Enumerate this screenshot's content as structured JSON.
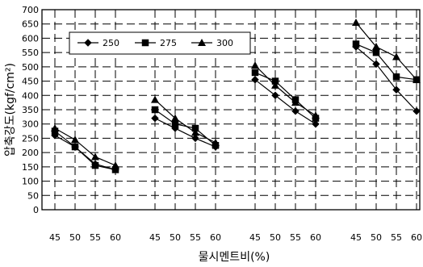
{
  "chart_data": {
    "type": "line",
    "title": "",
    "xlabel": "물시멘트비(%)",
    "ylabel": "압축강도(kgf/cm²)",
    "ylim": [
      0,
      700
    ],
    "ytick_step": 50,
    "grid": true,
    "legend_position": "top-left",
    "group_count": 4,
    "x": [
      "45",
      "50",
      "55",
      "60"
    ],
    "series": [
      {
        "name": "250",
        "marker": "diamond",
        "groups": [
          [
            260,
            220,
            160,
            140
          ],
          [
            320,
            285,
            250,
            220
          ],
          [
            455,
            400,
            345,
            300
          ],
          [
            570,
            510,
            420,
            345
          ]
        ]
      },
      {
        "name": "275",
        "marker": "square",
        "groups": [
          [
            275,
            220,
            155,
            140
          ],
          [
            350,
            300,
            285,
            225
          ],
          [
            480,
            450,
            385,
            320
          ],
          [
            580,
            550,
            465,
            455
          ]
        ]
      },
      {
        "name": "300",
        "marker": "triangle",
        "groups": [
          [
            285,
            245,
            185,
            155
          ],
          [
            385,
            320,
            270,
            235
          ],
          [
            505,
            435,
            375,
            330
          ],
          [
            655,
            570,
            535,
            455
          ]
        ]
      }
    ]
  }
}
